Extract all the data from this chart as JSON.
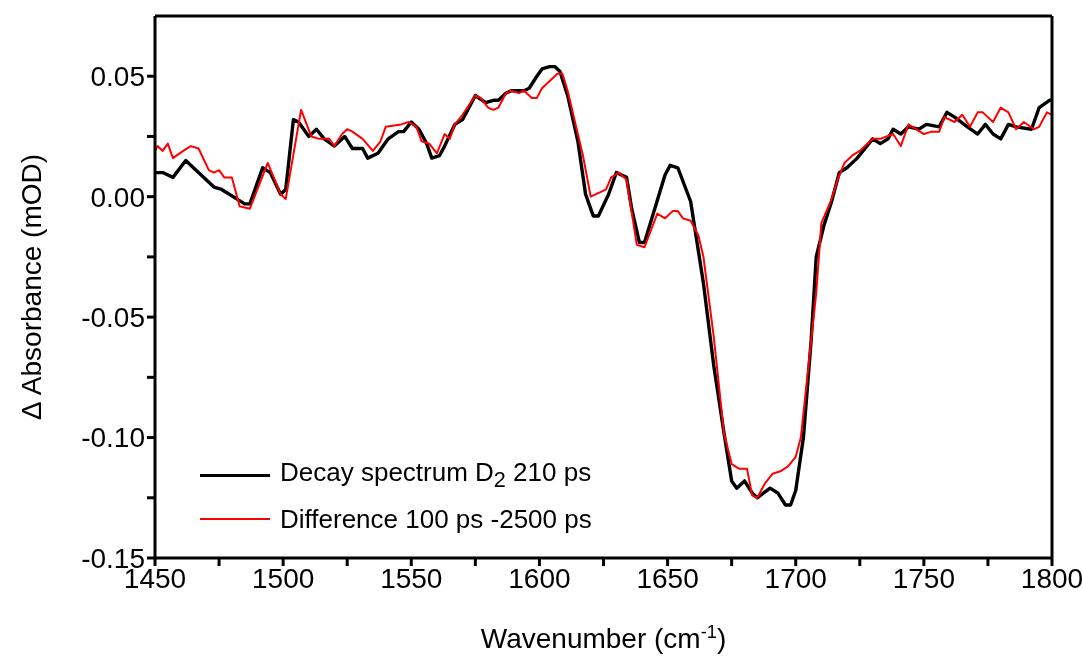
{
  "chart_data": {
    "type": "line",
    "xlabel": "Wavenumber (cm$^{-1}$)",
    "ylabel": "Δ Absorbance (mOD)",
    "xlim": [
      1450,
      1800
    ],
    "xticks": [
      1450,
      {
        "value": 1475,
        "label": null
      },
      1500,
      {
        "value": 1525,
        "label": null
      },
      1550,
      {
        "value": 1575,
        "label": null
      },
      1600,
      {
        "value": 1625,
        "label": null
      },
      1650,
      {
        "value": 1675,
        "label": null
      },
      1700,
      {
        "value": 1725,
        "label": null
      },
      1750,
      {
        "value": 1775,
        "label": null
      },
      1800
    ],
    "ylim": [
      -0.15,
      0.075
    ],
    "yticks": [
      -0.15,
      {
        "value": -0.125,
        "label": null
      },
      {
        "value": -0.1,
        "label": "-0.10"
      },
      {
        "value": -0.075,
        "label": null
      },
      -0.05,
      {
        "value": -0.025,
        "label": null
      },
      {
        "value": 0,
        "label": "0.00"
      },
      {
        "value": 0.025,
        "label": null
      },
      0.05
    ],
    "legend": "bottom left",
    "line_style": "solid",
    "marker": "none",
    "series": [
      {
        "name": "Decay spectrum D$_{2}$ 210 ps",
        "color": "#000000",
        "x": [
          1450,
          1453,
          1457,
          1462,
          1468,
          1473,
          1476,
          1485,
          1487,
          1492,
          1495,
          1499,
          1501,
          1504,
          1506,
          1510,
          1513,
          1516,
          1520,
          1524,
          1527,
          1531,
          1533,
          1537,
          1541,
          1545,
          1547,
          1550,
          1553,
          1556,
          1558,
          1561,
          1563,
          1567,
          1570,
          1575,
          1579,
          1582,
          1584,
          1587,
          1589,
          1594,
          1596,
          1599,
          1601,
          1604,
          1606,
          1608,
          1611,
          1615,
          1618,
          1621,
          1623,
          1627,
          1630,
          1634,
          1636,
          1639,
          1641,
          1645,
          1649,
          1651,
          1654,
          1659,
          1664,
          1668,
          1672,
          1675,
          1677,
          1680,
          1683,
          1685,
          1690,
          1693,
          1696,
          1698,
          1700,
          1703,
          1706,
          1708,
          1711,
          1714,
          1717,
          1720,
          1724,
          1730,
          1733,
          1736,
          1738,
          1741,
          1744,
          1748,
          1751,
          1756,
          1759,
          1762,
          1767,
          1771,
          1774,
          1777,
          1780,
          1783,
          1786,
          1792,
          1795,
          1799,
          1800
        ],
        "values": [
          0.01,
          0.01,
          0.008,
          0.015,
          0.009,
          0.004,
          0.003,
          -0.003,
          -0.003,
          0.012,
          0.01,
          0.001,
          0.003,
          0.032,
          0.031,
          0.025,
          0.028,
          0.024,
          0.021,
          0.025,
          0.02,
          0.02,
          0.016,
          0.018,
          0.024,
          0.027,
          0.027,
          0.031,
          0.028,
          0.022,
          0.016,
          0.017,
          0.021,
          0.03,
          0.032,
          0.042,
          0.039,
          0.04,
          0.04,
          0.043,
          0.044,
          0.044,
          0.045,
          0.05,
          0.053,
          0.054,
          0.054,
          0.052,
          0.042,
          0.023,
          0.001,
          -0.008,
          -0.008,
          0.001,
          0.01,
          0.008,
          -0.005,
          -0.019,
          -0.019,
          -0.005,
          0.009,
          0.013,
          0.012,
          -0.002,
          -0.036,
          -0.07,
          -0.098,
          -0.118,
          -0.121,
          -0.118,
          -0.123,
          -0.125,
          -0.121,
          -0.123,
          -0.128,
          -0.128,
          -0.122,
          -0.1,
          -0.06,
          -0.025,
          -0.012,
          -0.002,
          0.01,
          0.012,
          0.016,
          0.024,
          0.022,
          0.024,
          0.028,
          0.026,
          0.029,
          0.028,
          0.03,
          0.029,
          0.035,
          0.033,
          0.029,
          0.026,
          0.03,
          0.026,
          0.024,
          0.03,
          0.029,
          0.028,
          0.037,
          0.04,
          0.04
        ]
      },
      {
        "name": "Difference 100 ps -2500 ps",
        "color": "#ff0000",
        "x": [
          1450,
          1451,
          1453,
          1455,
          1457,
          1461,
          1464,
          1467,
          1471,
          1473,
          1475,
          1477,
          1480,
          1483,
          1487,
          1494,
          1499,
          1501,
          1507,
          1511,
          1514,
          1518,
          1520,
          1523,
          1525,
          1527,
          1531,
          1535,
          1538,
          1540,
          1546,
          1549,
          1552,
          1554,
          1557,
          1560,
          1563,
          1565,
          1567,
          1570,
          1575,
          1577,
          1580,
          1582,
          1584,
          1587,
          1589,
          1592,
          1594,
          1597,
          1599,
          1601,
          1607,
          1609,
          1611,
          1617,
          1620,
          1624,
          1626,
          1628,
          1631,
          1634,
          1638,
          1641,
          1646,
          1649,
          1652,
          1654,
          1656,
          1659,
          1662,
          1664,
          1668,
          1672,
          1675,
          1678,
          1681,
          1683,
          1685,
          1688,
          1691,
          1694,
          1697,
          1700,
          1702,
          1705,
          1708,
          1710,
          1714,
          1716,
          1719,
          1722,
          1725,
          1730,
          1733,
          1738,
          1741,
          1744,
          1750,
          1753,
          1756,
          1758,
          1762,
          1765,
          1768,
          1771,
          1773,
          1777,
          1780,
          1783,
          1786,
          1789,
          1793,
          1795,
          1798,
          1800
        ],
        "values": [
          0.019,
          0.021,
          0.019,
          0.022,
          0.016,
          0.019,
          0.021,
          0.02,
          0.011,
          0.01,
          0.011,
          0.008,
          0.008,
          -0.004,
          -0.005,
          0.014,
          0.001,
          -0.001,
          0.036,
          0.025,
          0.024,
          0.024,
          0.021,
          0.026,
          0.028,
          0.027,
          0.024,
          0.019,
          0.023,
          0.029,
          0.03,
          0.031,
          0.029,
          0.023,
          0.022,
          0.018,
          0.026,
          0.024,
          0.03,
          0.034,
          0.042,
          0.041,
          0.037,
          0.036,
          0.037,
          0.043,
          0.044,
          0.043,
          0.044,
          0.041,
          0.041,
          0.045,
          0.051,
          0.051,
          0.044,
          0.017,
          0.0,
          0.002,
          0.003,
          0.008,
          0.01,
          0.007,
          -0.02,
          -0.021,
          -0.007,
          -0.009,
          -0.006,
          -0.006,
          -0.009,
          -0.01,
          -0.016,
          -0.025,
          -0.058,
          -0.098,
          -0.111,
          -0.113,
          -0.113,
          -0.124,
          -0.125,
          -0.119,
          -0.115,
          -0.114,
          -0.112,
          -0.108,
          -0.1,
          -0.07,
          -0.04,
          -0.011,
          -0.001,
          0.006,
          0.014,
          0.017,
          0.019,
          0.024,
          0.024,
          0.026,
          0.021,
          0.03,
          0.026,
          0.027,
          0.027,
          0.033,
          0.031,
          0.034,
          0.029,
          0.035,
          0.035,
          0.031,
          0.037,
          0.035,
          0.028,
          0.031,
          0.028,
          0.029,
          0.035,
          0.034
        ]
      }
    ]
  }
}
